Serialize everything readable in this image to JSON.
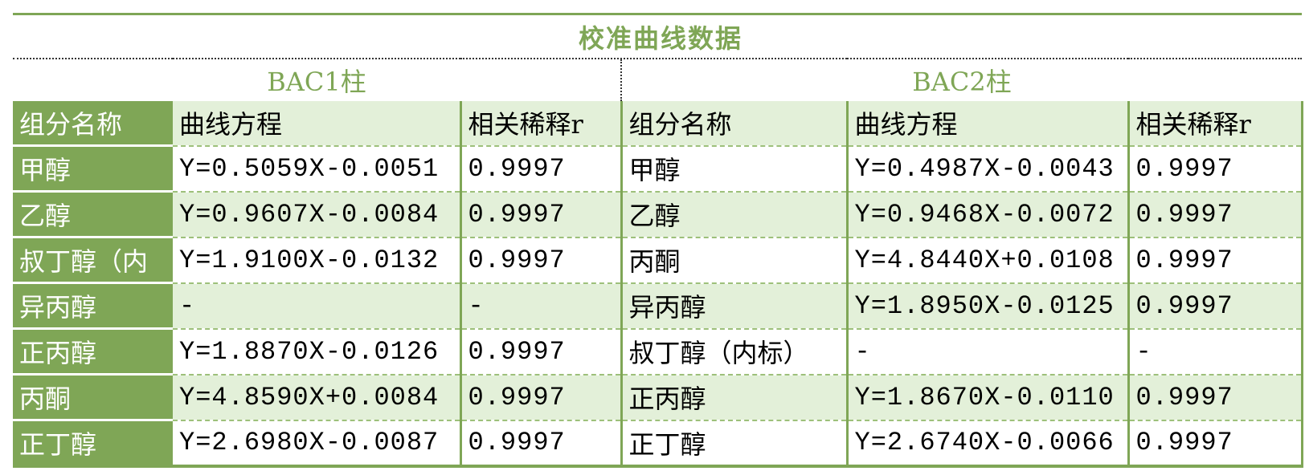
{
  "title": "校准曲线数据",
  "columns_groups": [
    "BAC1柱",
    "BAC2柱"
  ],
  "headers": {
    "component": "组分名称",
    "equation": "曲线方程",
    "r": "相关稀释r"
  },
  "rows": [
    {
      "bac1_name": "甲醇",
      "bac1_eq": "Y=0.5059X-0.0051",
      "bac1_r": "0.9997",
      "bac2_name": "甲醇",
      "bac2_eq": "Y=0.4987X-0.0043",
      "bac2_r": "0.9997"
    },
    {
      "bac1_name": "乙醇",
      "bac1_eq": "Y=0.9607X-0.0084",
      "bac1_r": "0.9997",
      "bac2_name": "乙醇",
      "bac2_eq": "Y=0.9468X-0.0072",
      "bac2_r": "0.9997"
    },
    {
      "bac1_name": "叔丁醇（内",
      "bac1_eq": "Y=1.9100X-0.0132",
      "bac1_r": "0.9997",
      "bac2_name": "丙酮",
      "bac2_eq": "Y=4.8440X+0.0108",
      "bac2_r": "0.9997"
    },
    {
      "bac1_name": "异丙醇",
      "bac1_eq": "-",
      "bac1_r": "-",
      "bac2_name": "异丙醇",
      "bac2_eq": "Y=1.8950X-0.0125",
      "bac2_r": "0.9997"
    },
    {
      "bac1_name": "正丙醇",
      "bac1_eq": "Y=1.8870X-0.0126",
      "bac1_r": "0.9997",
      "bac2_name": "叔丁醇（内标）",
      "bac2_eq": "-",
      "bac2_r": "-"
    },
    {
      "bac1_name": "丙酮",
      "bac1_eq": "Y=4.8590X+0.0084",
      "bac1_r": "0.9997",
      "bac2_name": "正丙醇",
      "bac2_eq": "Y=1.8670X-0.0110",
      "bac2_r": "0.9997"
    },
    {
      "bac1_name": "正丁醇",
      "bac1_eq": "Y=2.6980X-0.0087",
      "bac1_r": "0.9997",
      "bac2_name": "正丁醇",
      "bac2_eq": "Y=2.6740X-0.0066",
      "bac2_r": "0.9997"
    }
  ],
  "colors": {
    "accent": "#7fa656",
    "row_fill": "#e3f0d9"
  }
}
